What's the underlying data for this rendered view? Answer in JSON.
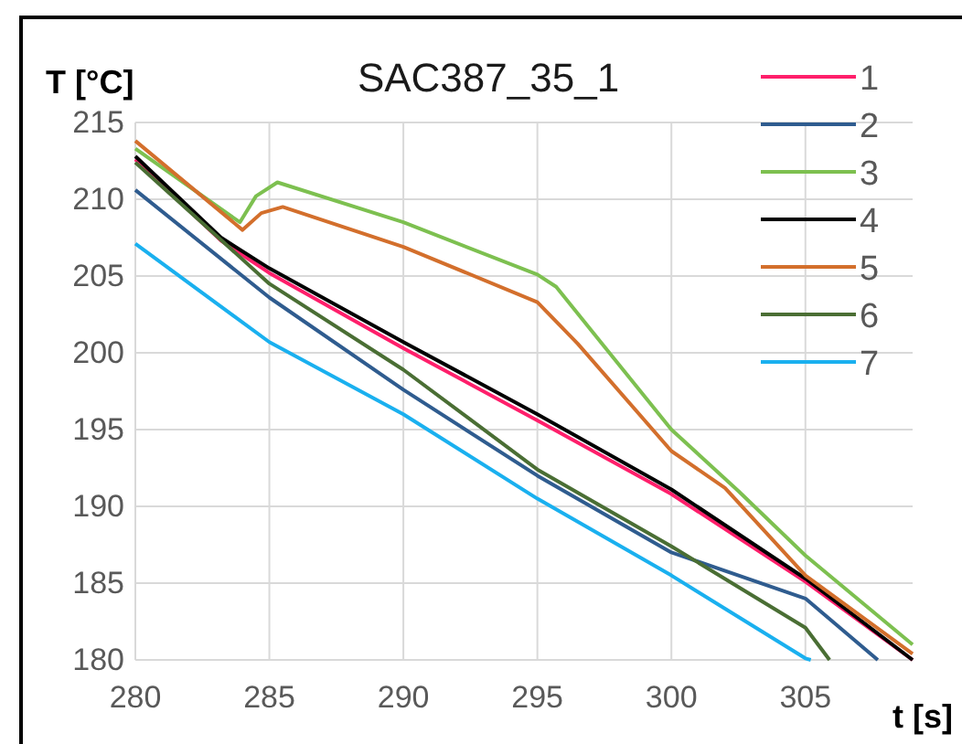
{
  "chart_data": {
    "type": "line",
    "title": "SAC387_35_1",
    "xlabel": "t [s]",
    "ylabel": "T [°C]",
    "xlim": [
      280,
      309
    ],
    "ylim": [
      180,
      215
    ],
    "xticks": [
      280,
      285,
      290,
      295,
      300,
      305
    ],
    "yticks": [
      180,
      185,
      190,
      195,
      200,
      205,
      210,
      215
    ],
    "grid": true,
    "legend": "top right",
    "line_style": "solid",
    "marker": "none",
    "series": [
      {
        "name": "1",
        "color": "#ff1f6b",
        "x": [
          280,
          283.2,
          285,
          290,
          295,
          300,
          305,
          309
        ],
        "values": [
          212.6,
          207.3,
          205.2,
          200.3,
          195.6,
          190.8,
          185.1,
          180.0
        ]
      },
      {
        "name": "2",
        "color": "#2f5c8f",
        "x": [
          280,
          285,
          290,
          295,
          300,
          305,
          307.7
        ],
        "values": [
          210.6,
          203.6,
          197.6,
          192.0,
          187.0,
          184.0,
          180.0
        ]
      },
      {
        "name": "3",
        "color": "#7dc050",
        "x": [
          280,
          283.9,
          284.5,
          285.3,
          290,
          295,
          295.7,
          297.5,
          300,
          302.5,
          305,
          309
        ],
        "values": [
          213.3,
          208.5,
          210.2,
          211.1,
          208.5,
          205.1,
          204.3,
          200.4,
          195.0,
          191.0,
          186.8,
          181.0
        ]
      },
      {
        "name": "4",
        "color": "#000000",
        "x": [
          280,
          283.2,
          285,
          290,
          295,
          300,
          305,
          309
        ],
        "values": [
          212.8,
          207.5,
          205.5,
          200.7,
          196.0,
          191.1,
          185.3,
          180.0
        ]
      },
      {
        "name": "5",
        "color": "#d36f2c",
        "x": [
          280,
          284.0,
          284.7,
          285.5,
          290,
          295,
          296.5,
          300,
          302,
          305,
          309
        ],
        "values": [
          213.8,
          208.0,
          209.1,
          209.5,
          206.9,
          203.3,
          200.6,
          193.6,
          191.2,
          185.5,
          180.4
        ]
      },
      {
        "name": "6",
        "color": "#4a6e34",
        "x": [
          280,
          285,
          290,
          295,
          300,
          305,
          305.9
        ],
        "values": [
          212.4,
          204.5,
          198.9,
          192.4,
          187.4,
          182.1,
          180.0
        ]
      },
      {
        "name": "7",
        "color": "#1ab0ef",
        "x": [
          280,
          285,
          290,
          295,
          300,
          305,
          305.2
        ],
        "values": [
          207.1,
          200.7,
          196.0,
          190.5,
          185.5,
          180.1,
          180.0
        ]
      }
    ]
  }
}
